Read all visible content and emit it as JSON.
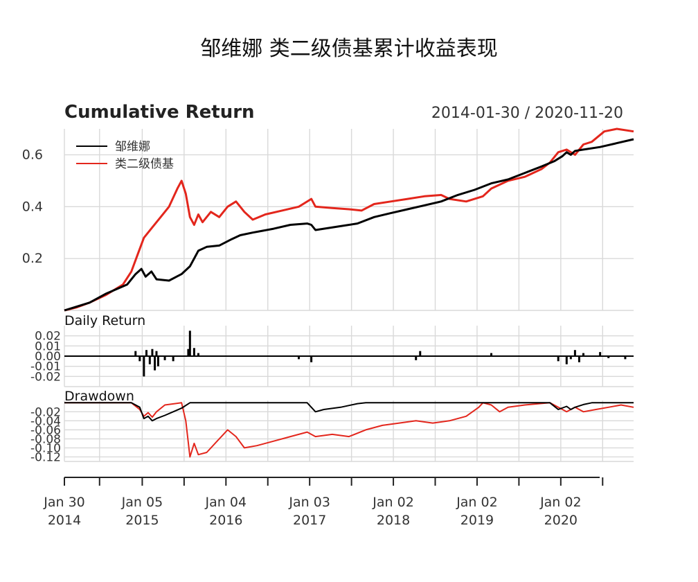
{
  "title": "邹维娜 类二级债基累计收益表现",
  "chart_data": [
    {
      "type": "line",
      "title": "Cumulative Return",
      "date_range": "2014-01-30 / 2020-11-20",
      "ylim": [
        0,
        0.7
      ],
      "yticks": [
        {
          "v": 0.2,
          "label": "0.2"
        },
        {
          "v": 0.4,
          "label": "0.4"
        },
        {
          "v": 0.6,
          "label": "0.6"
        }
      ],
      "grid": true,
      "legend_position": "top-left",
      "series": [
        {
          "name": "邹维娜",
          "color": "#000000",
          "points": [
            [
              0,
              0.0
            ],
            [
              0.15,
              0.015
            ],
            [
              0.3,
              0.03
            ],
            [
              0.5,
              0.065
            ],
            [
              0.75,
              0.1
            ],
            [
              0.85,
              0.14
            ],
            [
              0.92,
              0.16
            ],
            [
              0.97,
              0.13
            ],
            [
              1.04,
              0.15
            ],
            [
              1.1,
              0.12
            ],
            [
              1.25,
              0.115
            ],
            [
              1.4,
              0.14
            ],
            [
              1.5,
              0.17
            ],
            [
              1.55,
              0.2
            ],
            [
              1.6,
              0.23
            ],
            [
              1.7,
              0.245
            ],
            [
              1.85,
              0.25
            ],
            [
              2.0,
              0.275
            ],
            [
              2.1,
              0.29
            ],
            [
              2.25,
              0.3
            ],
            [
              2.5,
              0.315
            ],
            [
              2.7,
              0.33
            ],
            [
              2.9,
              0.335
            ],
            [
              2.95,
              0.33
            ],
            [
              3.0,
              0.31
            ],
            [
              3.1,
              0.315
            ],
            [
              3.3,
              0.325
            ],
            [
              3.5,
              0.335
            ],
            [
              3.7,
              0.36
            ],
            [
              3.9,
              0.375
            ],
            [
              4.1,
              0.39
            ],
            [
              4.3,
              0.405
            ],
            [
              4.5,
              0.42
            ],
            [
              4.7,
              0.445
            ],
            [
              4.9,
              0.465
            ],
            [
              5.1,
              0.49
            ],
            [
              5.3,
              0.505
            ],
            [
              5.5,
              0.53
            ],
            [
              5.7,
              0.555
            ],
            [
              5.85,
              0.575
            ],
            [
              5.95,
              0.595
            ],
            [
              6.0,
              0.61
            ],
            [
              6.05,
              0.6
            ],
            [
              6.1,
              0.615
            ],
            [
              6.2,
              0.62
            ],
            [
              6.4,
              0.63
            ],
            [
              6.6,
              0.645
            ],
            [
              6.8,
              0.66
            ]
          ]
        },
        {
          "name": "类二级债基",
          "color": "#e3261c",
          "points": [
            [
              0,
              0.0
            ],
            [
              0.15,
              0.012
            ],
            [
              0.3,
              0.03
            ],
            [
              0.5,
              0.06
            ],
            [
              0.7,
              0.1
            ],
            [
              0.8,
              0.15
            ],
            [
              0.88,
              0.22
            ],
            [
              0.95,
              0.28
            ],
            [
              1.05,
              0.32
            ],
            [
              1.15,
              0.36
            ],
            [
              1.25,
              0.4
            ],
            [
              1.35,
              0.47
            ],
            [
              1.4,
              0.5
            ],
            [
              1.45,
              0.45
            ],
            [
              1.5,
              0.36
            ],
            [
              1.55,
              0.33
            ],
            [
              1.6,
              0.37
            ],
            [
              1.65,
              0.34
            ],
            [
              1.75,
              0.38
            ],
            [
              1.85,
              0.36
            ],
            [
              1.95,
              0.4
            ],
            [
              2.05,
              0.42
            ],
            [
              2.15,
              0.38
            ],
            [
              2.25,
              0.35
            ],
            [
              2.4,
              0.37
            ],
            [
              2.6,
              0.385
            ],
            [
              2.8,
              0.4
            ],
            [
              2.95,
              0.43
            ],
            [
              3.0,
              0.4
            ],
            [
              3.2,
              0.395
            ],
            [
              3.4,
              0.39
            ],
            [
              3.55,
              0.385
            ],
            [
              3.7,
              0.41
            ],
            [
              3.9,
              0.42
            ],
            [
              4.1,
              0.43
            ],
            [
              4.3,
              0.44
            ],
            [
              4.5,
              0.445
            ],
            [
              4.6,
              0.43
            ],
            [
              4.8,
              0.42
            ],
            [
              5.0,
              0.44
            ],
            [
              5.1,
              0.47
            ],
            [
              5.3,
              0.5
            ],
            [
              5.5,
              0.515
            ],
            [
              5.7,
              0.545
            ],
            [
              5.8,
              0.57
            ],
            [
              5.9,
              0.61
            ],
            [
              6.0,
              0.62
            ],
            [
              6.1,
              0.6
            ],
            [
              6.2,
              0.64
            ],
            [
              6.3,
              0.65
            ],
            [
              6.45,
              0.69
            ],
            [
              6.6,
              0.7
            ],
            [
              6.8,
              0.69
            ]
          ]
        }
      ]
    },
    {
      "type": "bar",
      "title": "Daily Return",
      "ylim": [
        -0.03,
        0.03
      ],
      "yticks": [
        {
          "v": 0.02,
          "label": "0.02"
        },
        {
          "v": 0.01,
          "label": "0.01"
        },
        {
          "v": 0.0,
          "label": "0.00"
        },
        {
          "v": -0.01,
          "label": "-0.01"
        },
        {
          "v": -0.02,
          "label": "-0.02"
        }
      ],
      "bars": [
        [
          0.85,
          0.005
        ],
        [
          0.9,
          -0.005
        ],
        [
          0.95,
          -0.02
        ],
        [
          0.98,
          0.006
        ],
        [
          1.02,
          -0.008
        ],
        [
          1.05,
          0.007
        ],
        [
          1.08,
          -0.014
        ],
        [
          1.1,
          0.005
        ],
        [
          1.12,
          -0.01
        ],
        [
          1.2,
          -0.004
        ],
        [
          1.3,
          -0.005
        ],
        [
          1.48,
          0.007
        ],
        [
          1.5,
          0.025
        ],
        [
          1.55,
          0.008
        ],
        [
          1.6,
          0.003
        ],
        [
          2.8,
          -0.003
        ],
        [
          2.95,
          -0.006
        ],
        [
          4.2,
          -0.004
        ],
        [
          4.25,
          0.005
        ],
        [
          5.1,
          0.003
        ],
        [
          5.9,
          -0.005
        ],
        [
          6.0,
          -0.008
        ],
        [
          6.05,
          -0.003
        ],
        [
          6.1,
          0.006
        ],
        [
          6.15,
          -0.006
        ],
        [
          6.2,
          0.003
        ],
        [
          6.4,
          0.004
        ],
        [
          6.5,
          -0.002
        ],
        [
          6.7,
          -0.003
        ]
      ]
    },
    {
      "type": "line",
      "title": "Drawdown",
      "ylim": [
        -0.13,
        0.005
      ],
      "yticks": [
        {
          "v": -0.02,
          "label": "-0.02"
        },
        {
          "v": -0.04,
          "label": "-0.04"
        },
        {
          "v": -0.06,
          "label": "-0.06"
        },
        {
          "v": -0.08,
          "label": "-0.08"
        },
        {
          "v": -0.1,
          "label": "-0.10"
        },
        {
          "v": -0.12,
          "label": "-0.12"
        }
      ],
      "series": [
        {
          "name": "邹维娜",
          "color": "#000000",
          "points": [
            [
              0,
              0.0
            ],
            [
              0.8,
              0.0
            ],
            [
              0.9,
              -0.01
            ],
            [
              0.95,
              -0.035
            ],
            [
              1.0,
              -0.03
            ],
            [
              1.05,
              -0.04
            ],
            [
              1.1,
              -0.035
            ],
            [
              1.2,
              -0.028
            ],
            [
              1.3,
              -0.02
            ],
            [
              1.4,
              -0.012
            ],
            [
              1.5,
              0.0
            ],
            [
              2.9,
              0.0
            ],
            [
              3.0,
              -0.02
            ],
            [
              3.1,
              -0.015
            ],
            [
              3.3,
              -0.01
            ],
            [
              3.5,
              -0.002
            ],
            [
              3.6,
              0.0
            ],
            [
              5.8,
              0.0
            ],
            [
              5.9,
              -0.015
            ],
            [
              6.0,
              -0.008
            ],
            [
              6.05,
              -0.015
            ],
            [
              6.1,
              -0.01
            ],
            [
              6.2,
              -0.004
            ],
            [
              6.3,
              0.0
            ],
            [
              6.8,
              0.0
            ]
          ]
        },
        {
          "name": "类二级债基",
          "color": "#e3261c",
          "points": [
            [
              0,
              0.0
            ],
            [
              0.8,
              0.0
            ],
            [
              0.9,
              -0.015
            ],
            [
              0.95,
              -0.03
            ],
            [
              1.0,
              -0.022
            ],
            [
              1.05,
              -0.032
            ],
            [
              1.1,
              -0.02
            ],
            [
              1.2,
              -0.005
            ],
            [
              1.4,
              0.0
            ],
            [
              1.45,
              -0.04
            ],
            [
              1.5,
              -0.12
            ],
            [
              1.55,
              -0.09
            ],
            [
              1.6,
              -0.115
            ],
            [
              1.7,
              -0.11
            ],
            [
              1.85,
              -0.08
            ],
            [
              1.95,
              -0.06
            ],
            [
              2.05,
              -0.075
            ],
            [
              2.15,
              -0.1
            ],
            [
              2.3,
              -0.095
            ],
            [
              2.5,
              -0.085
            ],
            [
              2.7,
              -0.075
            ],
            [
              2.9,
              -0.065
            ],
            [
              3.0,
              -0.075
            ],
            [
              3.2,
              -0.07
            ],
            [
              3.4,
              -0.075
            ],
            [
              3.6,
              -0.06
            ],
            [
              3.8,
              -0.05
            ],
            [
              4.0,
              -0.045
            ],
            [
              4.2,
              -0.04
            ],
            [
              4.4,
              -0.045
            ],
            [
              4.6,
              -0.04
            ],
            [
              4.8,
              -0.03
            ],
            [
              4.95,
              -0.01
            ],
            [
              5.0,
              0.0
            ],
            [
              5.1,
              -0.005
            ],
            [
              5.2,
              -0.02
            ],
            [
              5.3,
              -0.01
            ],
            [
              5.5,
              -0.005
            ],
            [
              5.8,
              0.0
            ],
            [
              6.0,
              -0.02
            ],
            [
              6.1,
              -0.01
            ],
            [
              6.2,
              -0.02
            ],
            [
              6.35,
              -0.015
            ],
            [
              6.5,
              -0.01
            ],
            [
              6.65,
              -0.005
            ],
            [
              6.8,
              -0.01
            ]
          ]
        }
      ]
    }
  ],
  "x_axis": {
    "xlim": [
      0,
      6.8
    ],
    "ticks": [
      {
        "x": 0,
        "line1": "Jan 30",
        "line2": "2014"
      },
      {
        "x": 0.93,
        "line1": "Jan 05",
        "line2": "2015"
      },
      {
        "x": 1.93,
        "line1": "Jan 04",
        "line2": "2016"
      },
      {
        "x": 2.93,
        "line1": "Jan 03",
        "line2": "2017"
      },
      {
        "x": 3.93,
        "line1": "Jan 02",
        "line2": "2018"
      },
      {
        "x": 4.93,
        "line1": "Jan 02",
        "line2": "2019"
      },
      {
        "x": 5.93,
        "line1": "Jan 02",
        "line2": "2020"
      }
    ],
    "minor_ticks": [
      0.42,
      1.43,
      2.43,
      3.43,
      4.43,
      5.43,
      6.43
    ]
  }
}
